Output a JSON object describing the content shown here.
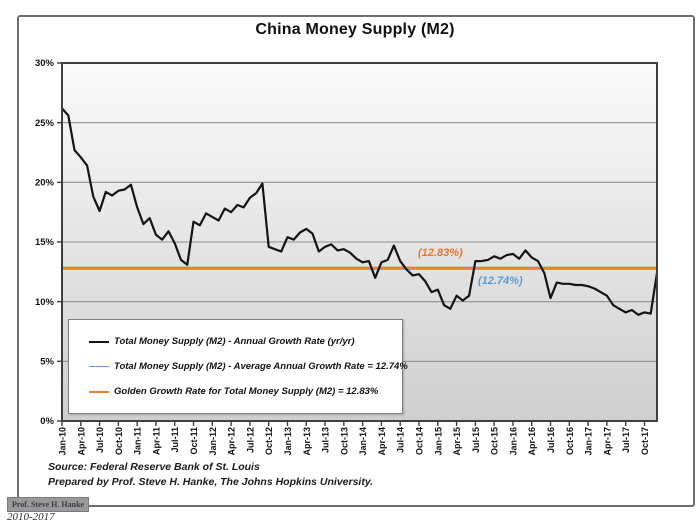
{
  "title": "China Money Supply (M2)",
  "annotations": {
    "golden": {
      "text": "(12.83%)",
      "color": "#E8762C"
    },
    "average": {
      "text": "(12.74%)",
      "color": "#5B9BD5"
    }
  },
  "legend": {
    "items": [
      {
        "label": "Total Money Supply (M2) - Annual Growth Rate (yr/yr)",
        "color": "#141414",
        "thickness": 2.5
      },
      {
        "label": "Total Money Supply (M2) - Average Annual Growth Rate = 12.74%",
        "color": "#5B9BD5",
        "thickness": 1.5
      },
      {
        "label": "Golden Growth Rate for Total Money Supply (M2) = 12.83%",
        "color": "#ED7D31",
        "thickness": 2.5
      }
    ]
  },
  "footer": {
    "source": "Source: Federal Reserve Bank of St. Louis",
    "prepared_by": "Prepared by Prof. Steve H. Hanke, The Johns Hopkins University.",
    "badge": "Prof. Steve H. Hanke",
    "date_range": "2010-2017"
  },
  "chart_data": {
    "type": "line",
    "title": "China Money Supply (M2)",
    "xlabel": "",
    "ylabel": "",
    "ylim": [
      0,
      30
    ],
    "ytick_step": 5,
    "grid": true,
    "legend_position": "inside-bottom-left",
    "y_tick_labels": [
      "0%",
      "5%",
      "10%",
      "15%",
      "20%",
      "25%",
      "30%"
    ],
    "x_tick_labels": [
      "Jan-10",
      "Apr-10",
      "Jul-10",
      "Oct-10",
      "Jan-11",
      "Apr-11",
      "Jul-11",
      "Oct-11",
      "Jan-12",
      "Apr-12",
      "Jul-12",
      "Oct-12",
      "Jan-13",
      "Apr-13",
      "Jul-13",
      "Oct-13",
      "Jan-14",
      "Apr-14",
      "Jul-14",
      "Oct-14",
      "Jan-15",
      "Apr-15",
      "Jul-15",
      "Oct-15",
      "Jan-16",
      "Apr-16",
      "Jul-16",
      "Oct-16",
      "Jan-17",
      "Apr-17",
      "Jul-17",
      "Oct-17"
    ],
    "x": [
      "Jan-10",
      "Feb-10",
      "Mar-10",
      "Apr-10",
      "May-10",
      "Jun-10",
      "Jul-10",
      "Aug-10",
      "Sep-10",
      "Oct-10",
      "Nov-10",
      "Dec-10",
      "Jan-11",
      "Feb-11",
      "Mar-11",
      "Apr-11",
      "May-11",
      "Jun-11",
      "Jul-11",
      "Aug-11",
      "Sep-11",
      "Oct-11",
      "Nov-11",
      "Dec-11",
      "Jan-12",
      "Feb-12",
      "Mar-12",
      "Apr-12",
      "May-12",
      "Jun-12",
      "Jul-12",
      "Aug-12",
      "Sep-12",
      "Oct-12",
      "Nov-12",
      "Dec-12",
      "Jan-13",
      "Feb-13",
      "Mar-13",
      "Apr-13",
      "May-13",
      "Jun-13",
      "Jul-13",
      "Aug-13",
      "Sep-13",
      "Oct-13",
      "Nov-13",
      "Dec-13",
      "Jan-14",
      "Feb-14",
      "Mar-14",
      "Apr-14",
      "May-14",
      "Jun-14",
      "Jul-14",
      "Aug-14",
      "Sep-14",
      "Oct-14",
      "Nov-14",
      "Dec-14",
      "Jan-15",
      "Feb-15",
      "Mar-15",
      "Apr-15",
      "May-15",
      "Jun-15",
      "Jul-15",
      "Aug-15",
      "Sep-15",
      "Oct-15",
      "Nov-15",
      "Dec-15",
      "Jan-16",
      "Feb-16",
      "Mar-16",
      "Apr-16",
      "May-16",
      "Jun-16",
      "Jul-16",
      "Aug-16",
      "Sep-16",
      "Oct-16",
      "Nov-16",
      "Dec-16",
      "Jan-17",
      "Feb-17",
      "Mar-17",
      "Apr-17",
      "May-17",
      "Jun-17",
      "Jul-17",
      "Aug-17",
      "Sep-17",
      "Oct-17",
      "Nov-17",
      "Dec-17"
    ],
    "series": [
      {
        "name": "Total Money Supply (M2) - Annual Growth Rate (yr/yr)",
        "style": "line",
        "color": "#141414",
        "values": [
          26.2,
          25.6,
          22.7,
          22.1,
          21.4,
          18.8,
          17.6,
          19.2,
          18.9,
          19.3,
          19.4,
          19.8,
          17.9,
          16.5,
          17.0,
          15.6,
          15.2,
          15.9,
          14.9,
          13.5,
          13.1,
          16.7,
          16.4,
          17.4,
          17.1,
          16.8,
          17.8,
          17.5,
          18.1,
          17.9,
          18.7,
          19.1,
          19.9,
          14.6,
          14.4,
          14.2,
          15.4,
          15.2,
          15.8,
          16.1,
          15.7,
          14.2,
          14.6,
          14.8,
          14.3,
          14.4,
          14.1,
          13.6,
          13.3,
          13.4,
          12.0,
          13.3,
          13.5,
          14.7,
          13.4,
          12.7,
          12.2,
          12.3,
          11.7,
          10.8,
          11.0,
          9.7,
          9.4,
          10.5,
          10.1,
          10.5,
          13.4,
          13.4,
          13.5,
          13.8,
          13.6,
          13.9,
          14.0,
          13.6,
          14.3,
          13.7,
          13.4,
          12.4,
          10.3,
          11.6,
          11.5,
          11.5,
          11.4,
          11.4,
          11.3,
          11.1,
          10.8,
          10.5,
          9.7,
          9.4,
          9.1,
          9.3,
          8.9,
          9.1,
          9.0,
          12.4
        ]
      },
      {
        "name": "Total Money Supply (M2) - Average Annual Growth Rate",
        "style": "constant",
        "color": "#5B9BD5",
        "value": 12.74
      },
      {
        "name": "Golden Growth Rate for Total Money Supply (M2)",
        "style": "constant",
        "color": "#ED7D31",
        "value": 12.83
      }
    ]
  }
}
